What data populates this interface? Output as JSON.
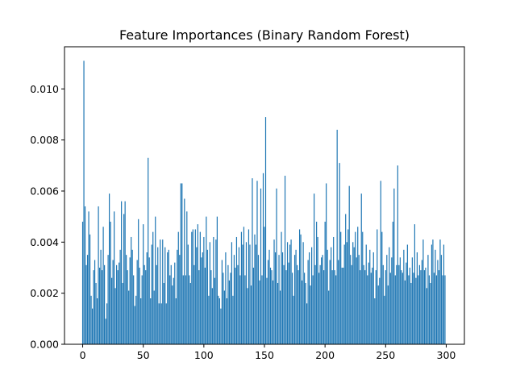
{
  "chart_data": {
    "type": "bar",
    "title": "Feature Importances (Binary Random Forest)",
    "xlabel": "",
    "ylabel": "",
    "xlim": [
      -15,
      315
    ],
    "ylim": [
      0,
      0.01165
    ],
    "x_ticks": [
      0,
      50,
      100,
      150,
      200,
      250,
      300
    ],
    "y_ticks": [
      0.0,
      0.002,
      0.004,
      0.006,
      0.008,
      0.01
    ],
    "x_tick_labels": [
      "0",
      "50",
      "100",
      "150",
      "200",
      "250",
      "300"
    ],
    "y_tick_labels": [
      "0.000",
      "0.002",
      "0.004",
      "0.006",
      "0.008",
      "0.010"
    ],
    "grid": false,
    "bar_color": "#1f77b4",
    "n_features": 300,
    "values": [
      0.0048,
      0.0111,
      0.0054,
      0.0031,
      0.0035,
      0.0052,
      0.0043,
      0.0019,
      0.0014,
      0.0029,
      0.0033,
      0.0024,
      0.0018,
      0.0054,
      0.003,
      0.0037,
      0.0029,
      0.0046,
      0.0031,
      0.001,
      0.0016,
      0.0035,
      0.0059,
      0.0048,
      0.0026,
      0.0033,
      0.0052,
      0.0022,
      0.0031,
      0.0029,
      0.0032,
      0.0037,
      0.0056,
      0.0024,
      0.0051,
      0.0056,
      0.0035,
      0.0029,
      0.0021,
      0.0034,
      0.0042,
      0.0037,
      0.0027,
      0.0015,
      0.0019,
      0.0033,
      0.0049,
      0.003,
      0.0018,
      0.0027,
      0.0047,
      0.0031,
      0.0029,
      0.0036,
      0.0073,
      0.0034,
      0.0018,
      0.0039,
      0.0044,
      0.0021,
      0.005,
      0.0031,
      0.0038,
      0.0016,
      0.0041,
      0.0016,
      0.0041,
      0.0024,
      0.0038,
      0.0016,
      0.0036,
      0.0037,
      0.0027,
      0.0031,
      0.0023,
      0.0026,
      0.0032,
      0.0018,
      0.0037,
      0.0044,
      0.0035,
      0.0063,
      0.0063,
      0.0027,
      0.0057,
      0.0027,
      0.0052,
      0.0039,
      0.0027,
      0.0024,
      0.0044,
      0.0045,
      0.0031,
      0.0045,
      0.0038,
      0.0047,
      0.0029,
      0.0044,
      0.0034,
      0.0036,
      0.0042,
      0.003,
      0.005,
      0.0037,
      0.0019,
      0.004,
      0.0029,
      0.0022,
      0.0042,
      0.0026,
      0.0041,
      0.005,
      0.0019,
      0.0018,
      0.0014,
      0.0033,
      0.0028,
      0.0021,
      0.0036,
      0.0018,
      0.0031,
      0.0025,
      0.0028,
      0.004,
      0.0019,
      0.0035,
      0.003,
      0.0042,
      0.0031,
      0.0038,
      0.0027,
      0.0044,
      0.0039,
      0.0046,
      0.0027,
      0.004,
      0.0022,
      0.0045,
      0.0039,
      0.0023,
      0.0065,
      0.003,
      0.0043,
      0.0039,
      0.0064,
      0.0035,
      0.0025,
      0.0061,
      0.0027,
      0.0067,
      0.0046,
      0.0089,
      0.0026,
      0.0033,
      0.0037,
      0.003,
      0.0029,
      0.0025,
      0.0041,
      0.0036,
      0.0061,
      0.0024,
      0.0035,
      0.0021,
      0.0044,
      0.0036,
      0.0031,
      0.0066,
      0.0029,
      0.004,
      0.0032,
      0.0039,
      0.0041,
      0.0028,
      0.0019,
      0.0035,
      0.0037,
      0.0031,
      0.0029,
      0.0045,
      0.0043,
      0.0025,
      0.004,
      0.0028,
      0.0024,
      0.0016,
      0.0033,
      0.0036,
      0.0023,
      0.0038,
      0.0027,
      0.0059,
      0.0031,
      0.0048,
      0.0042,
      0.0028,
      0.0031,
      0.0034,
      0.0035,
      0.0029,
      0.0048,
      0.0063,
      0.0037,
      0.0021,
      0.0033,
      0.0038,
      0.0029,
      0.0042,
      0.0029,
      0.0027,
      0.0084,
      0.0033,
      0.0071,
      0.0044,
      0.003,
      0.003,
      0.0039,
      0.0051,
      0.004,
      0.0045,
      0.0062,
      0.0035,
      0.0031,
      0.004,
      0.0038,
      0.0044,
      0.0034,
      0.0046,
      0.0035,
      0.0029,
      0.0059,
      0.0044,
      0.0031,
      0.0029,
      0.0039,
      0.0027,
      0.0032,
      0.0037,
      0.0028,
      0.003,
      0.0036,
      0.0018,
      0.0029,
      0.0045,
      0.0023,
      0.0026,
      0.0064,
      0.0044,
      0.0031,
      0.0019,
      0.0029,
      0.0035,
      0.0023,
      0.0038,
      0.0028,
      0.0034,
      0.0048,
      0.0061,
      0.0027,
      0.0031,
      0.007,
      0.0031,
      0.0034,
      0.0029,
      0.0028,
      0.0037,
      0.0025,
      0.0032,
      0.0039,
      0.0027,
      0.003,
      0.0024,
      0.0034,
      0.0028,
      0.0047,
      0.0026,
      0.0036,
      0.0027,
      0.0031,
      0.0029,
      0.0033,
      0.0041,
      0.0029,
      0.003,
      0.0022,
      0.0035,
      0.0027,
      0.0024,
      0.0039,
      0.0041,
      0.0028,
      0.0037,
      0.0027,
      0.0033,
      0.0029,
      0.0041,
      0.0035,
      0.0027,
      0.0039,
      0.0027
    ]
  }
}
